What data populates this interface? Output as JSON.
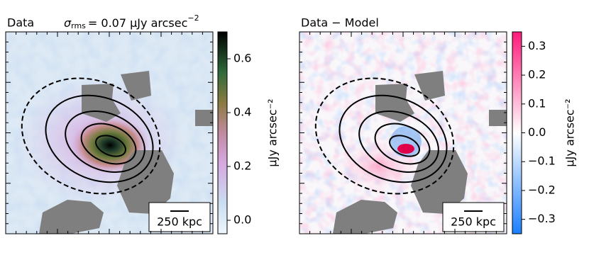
{
  "panels": [
    {
      "title": "Data",
      "annotation": {
        "symbol": "σ",
        "subscript": "rms",
        "text": "= 0.07 μJy arcsec",
        "superscript": "−2"
      },
      "scalebar": "250 kpc",
      "colorbar": {
        "label": "μJy arcsec⁻²",
        "lim": [
          -0.05,
          0.7
        ],
        "ticks": [
          {
            "value": 0,
            "label": "0.0"
          },
          0.2,
          0.4,
          0.6
        ]
      }
    },
    {
      "title": "Data − Model",
      "scalebar": "250 kpc",
      "colorbar": {
        "label": "μJy arcsec⁻²",
        "lim": [
          -0.35,
          0.35
        ],
        "ticks": [
          {
            "value": -0.3,
            "label": "−0.3"
          },
          {
            "value": -0.2,
            "label": "−0.2"
          },
          {
            "value": -0.1,
            "label": "−0.1"
          },
          {
            "value": 0,
            "label": "0.0"
          },
          0.1,
          0.2,
          0.3
        ]
      }
    }
  ]
}
